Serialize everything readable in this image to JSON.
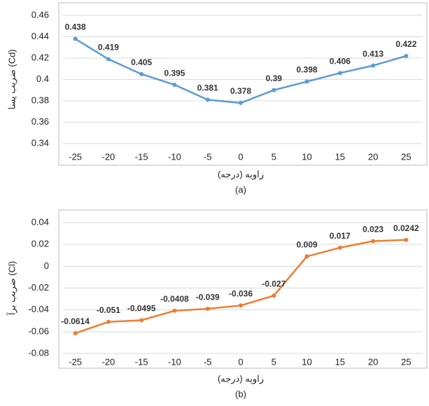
{
  "chart_data": [
    {
      "type": "line",
      "x": [
        -25,
        -20,
        -15,
        -10,
        -5,
        0,
        5,
        10,
        15,
        20,
        25
      ],
      "series": [
        {
          "name": "Cd",
          "color": "#5b9bd5",
          "values": [
            0.438,
            0.419,
            0.405,
            0.395,
            0.381,
            0.378,
            0.39,
            0.398,
            0.406,
            0.413,
            0.422
          ]
        }
      ],
      "xlim": [
        -27.5,
        27.5
      ],
      "xticks": [
        -25,
        -20,
        -15,
        -10,
        -5,
        0,
        5,
        10,
        15,
        20,
        25
      ],
      "ylim": [
        0.34,
        0.46
      ],
      "yticks": [
        0.34,
        0.36,
        0.38,
        0.4,
        0.42,
        0.44,
        0.46
      ],
      "grid": true,
      "y_label": "ضریب پسا (Cd)",
      "x_label": "زاویه (درجه)",
      "caption": "(a)"
    },
    {
      "type": "line",
      "x": [
        -25,
        -20,
        -15,
        -10,
        -5,
        0,
        5,
        10,
        15,
        20,
        25
      ],
      "series": [
        {
          "name": "Cl",
          "color": "#ed7d31",
          "values": [
            -0.0614,
            -0.051,
            -0.0495,
            -0.0408,
            -0.039,
            -0.036,
            -0.027,
            0.009,
            0.017,
            0.023,
            0.0242
          ]
        }
      ],
      "xlim": [
        -27.5,
        27.5
      ],
      "xticks": [
        -25,
        -20,
        -15,
        -10,
        -5,
        0,
        5,
        10,
        15,
        20,
        25
      ],
      "ylim": [
        -0.08,
        0.04
      ],
      "yticks": [
        -0.08,
        -0.06,
        -0.04,
        -0.02,
        0,
        0.02,
        0.04
      ],
      "grid": true,
      "y_label": "ضریب برآ (Cl)",
      "x_label": "زاویه (درجه)",
      "caption": "(b)"
    }
  ]
}
